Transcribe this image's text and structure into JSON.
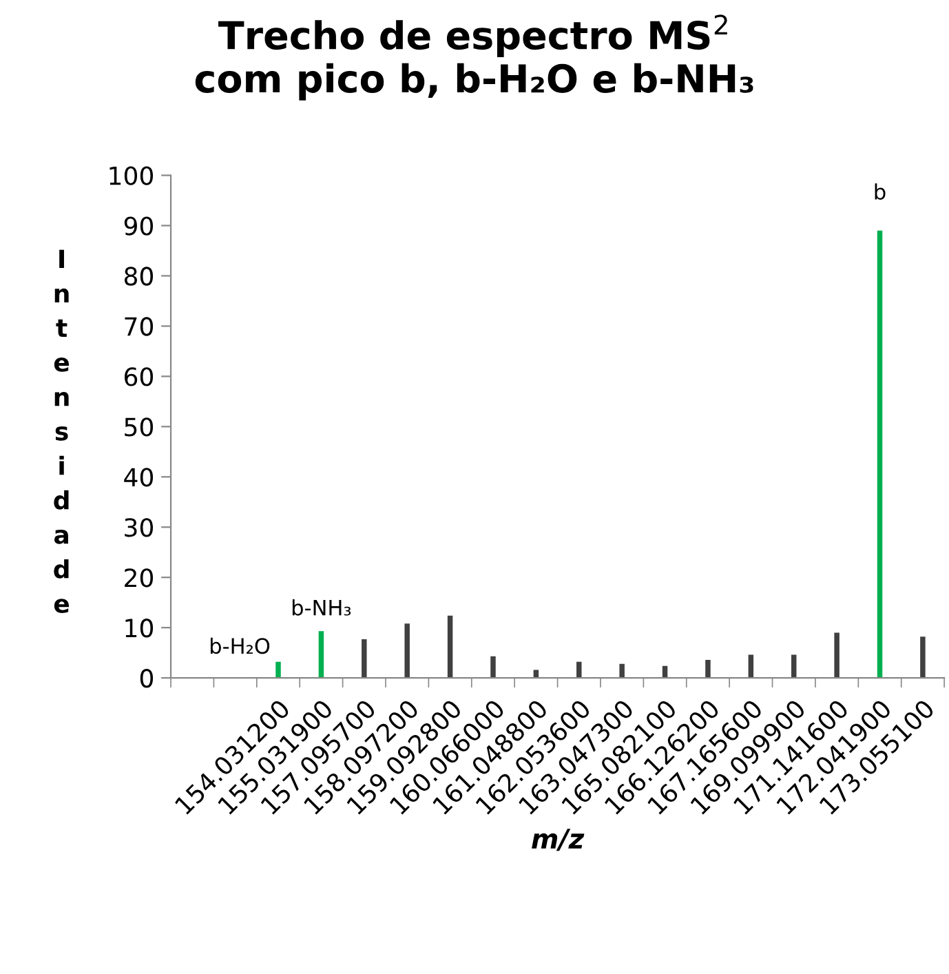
{
  "chart_data": {
    "type": "bar",
    "title": "Trecho de espectro MS$^{2}$\ncom pico b, b-H₂O e b-NH₃",
    "xlabel": "m/z",
    "ylabel": "Intensidade",
    "categories": [
      null,
      null,
      "154.031200",
      "155.031900",
      "157.095700",
      "158.097200",
      "159.092800",
      "160.066000",
      "161.048800",
      "162.053600",
      "163.047300",
      "165.082100",
      "166.126200",
      "167.165600",
      "169.099900",
      "171.141600",
      "172.041900",
      "173.055100"
    ],
    "values": [
      null,
      null,
      3.2,
      9.3,
      7.7,
      10.8,
      12.4,
      4.3,
      1.6,
      3.2,
      2.8,
      2.4,
      3.6,
      4.6,
      4.6,
      9.0,
      89.0,
      8.2
    ],
    "colors": [
      "#404040",
      "#404040",
      "#00b050",
      "#00b050",
      "#404040",
      "#404040",
      "#404040",
      "#404040",
      "#404040",
      "#404040",
      "#404040",
      "#404040",
      "#404040",
      "#404040",
      "#404040",
      "#404040",
      "#00b050",
      "#404040"
    ],
    "ylim": [
      0,
      100
    ],
    "yticks": [
      0,
      10,
      20,
      30,
      40,
      50,
      60,
      70,
      80,
      90,
      100
    ],
    "grid": false,
    "legend": false,
    "annotations": [
      {
        "text": "b-H₂O",
        "x": "154.031200",
        "y": 3.2
      },
      {
        "text": "b-NH₃",
        "x": "155.031900",
        "y": 9.3
      },
      {
        "text": "b",
        "x": "172.041900",
        "y": 89.0
      }
    ]
  }
}
